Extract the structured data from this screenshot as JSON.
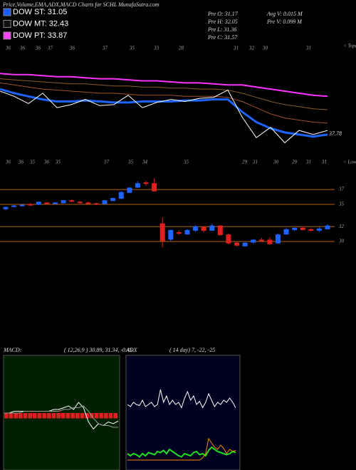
{
  "header": {
    "title": "Price,Volume,EMA,ADX,MACD Charts for SCHL MunafaSutra.com",
    "legend": [
      {
        "label": "DOW ST: 31.05",
        "color": "#1a5cff"
      },
      {
        "label": "DOW MT: 32.43",
        "color": "#111111"
      },
      {
        "label": "DOW PT: 33.87",
        "color": "#ff44ff"
      }
    ],
    "stats": [
      "Pre O: 31.17",
      "Pre H: 32.05",
      "Pre L: 31.36",
      "Pre C: 31.57",
      "Avg V: 0.015 M",
      "Pre V: 0.099 M"
    ]
  },
  "chart_data": [
    {
      "type": "line",
      "top_labels": [
        "36",
        "36",
        "36",
        "37",
        "36",
        "37",
        "35",
        "33",
        "28",
        "31",
        "32",
        "30",
        "31"
      ],
      "top_note": "< Topa",
      "bottom_labels": [
        "36",
        "36",
        "35",
        "36",
        "35",
        "37",
        "35",
        "34",
        "35",
        "29",
        "31",
        "30",
        "29",
        "31",
        "31"
      ],
      "bottom_note": "< Lowes",
      "annotation": "37.78",
      "ylim": [
        0,
        100
      ],
      "series": [
        {
          "color": "#ff33ff",
          "width": 2,
          "values": [
            77,
            76,
            76,
            75,
            74,
            74,
            73,
            72,
            72,
            71,
            70,
            70,
            69,
            68,
            68,
            67,
            66,
            66,
            64,
            62,
            60,
            58,
            56,
            55
          ]
        },
        {
          "color": "#8b5a2b",
          "width": 1,
          "values": [
            72,
            71,
            70,
            69,
            68,
            67,
            67,
            66,
            65,
            65,
            64,
            64,
            63,
            63,
            62,
            62,
            61,
            58,
            54,
            50,
            47,
            45,
            43,
            42
          ]
        },
        {
          "color": "#a0522d",
          "width": 1,
          "values": [
            68,
            66,
            64,
            62,
            61,
            60,
            59,
            58,
            58,
            57,
            56,
            56,
            56,
            55,
            55,
            55,
            54,
            50,
            44,
            38,
            34,
            32,
            30,
            29
          ]
        },
        {
          "color": "#1e63ff",
          "width": 3,
          "values": [
            62,
            58,
            55,
            52,
            50,
            50,
            51,
            50,
            49,
            49,
            50,
            50,
            50,
            51,
            51,
            52,
            52,
            40,
            30,
            24,
            20,
            18,
            16,
            18
          ]
        },
        {
          "color": "#ffffff",
          "width": 1,
          "values": [
            60,
            55,
            48,
            58,
            44,
            47,
            52,
            46,
            47,
            56,
            44,
            49,
            52,
            50,
            53,
            54,
            61,
            35,
            15,
            25,
            10,
            22,
            18,
            22
          ]
        }
      ]
    },
    {
      "type": "candlestick",
      "up_color": "#1e63ff",
      "down_color": "#e02020",
      "ylim": [
        28,
        39.5
      ],
      "yticks": [
        37,
        35,
        32,
        30
      ],
      "open": [
        34.4,
        34.7,
        34.8,
        35.0,
        35.0,
        35.2,
        35.1,
        35.2,
        35.5,
        35.3,
        35.2,
        35.1,
        35.1,
        35.5,
        35.8,
        36.6,
        37.3,
        37.9,
        37.8,
        32.4,
        30.3,
        31.2,
        31.0,
        31.5,
        31.9,
        31.5,
        32.1,
        30.9,
        29.8,
        29.4,
        29.9,
        30.2,
        30.2,
        29.8,
        31.0,
        31.6,
        31.8,
        31.6,
        31.5,
        31.7
      ],
      "high": [
        34.7,
        34.9,
        35.0,
        35.2,
        35.4,
        35.3,
        35.3,
        35.6,
        35.7,
        35.4,
        35.4,
        35.2,
        35.6,
        35.9,
        36.8,
        37.3,
        38.1,
        38.2,
        38.5,
        33.2,
        31.6,
        31.5,
        31.7,
        32.2,
        32.1,
        32.4,
        32.2,
        31.1,
        30.0,
        29.9,
        30.3,
        30.5,
        30.6,
        31.1,
        31.8,
        31.9,
        32.0,
        31.8,
        31.9,
        32.3
      ],
      "low": [
        34.2,
        34.6,
        34.7,
        34.8,
        34.9,
        35.0,
        35.0,
        35.1,
        35.3,
        35.1,
        35.0,
        34.9,
        35.0,
        35.4,
        35.7,
        36.5,
        37.2,
        37.5,
        36.7,
        29.2,
        30.0,
        30.9,
        30.9,
        31.3,
        31.2,
        31.4,
        30.8,
        29.6,
        29.3,
        29.3,
        29.7,
        30.0,
        29.5,
        29.7,
        30.9,
        31.4,
        31.5,
        31.3,
        31.3,
        31.6
      ],
      "close": [
        34.6,
        34.8,
        34.9,
        34.9,
        35.3,
        35.1,
        35.2,
        35.5,
        35.4,
        35.2,
        35.1,
        35.0,
        35.5,
        35.8,
        36.6,
        37.2,
        37.8,
        37.8,
        36.8,
        30.1,
        31.5,
        31.1,
        31.5,
        32.0,
        31.5,
        32.1,
        30.9,
        29.8,
        29.5,
        29.8,
        30.2,
        30.1,
        29.7,
        30.9,
        31.6,
        31.8,
        31.6,
        31.5,
        31.7,
        32.1
      ]
    },
    {
      "type": "macd",
      "title": "MACD:",
      "params": "( 12,26,9 ) 30.89, 31.34, -0.45",
      "ylim": [
        -3,
        3
      ],
      "histogram": {
        "color": "#e02020",
        "values": [
          -0.3,
          -0.3,
          -0.3,
          -0.3,
          -0.3,
          -0.3,
          -0.3,
          -0.3,
          -0.3,
          -0.3,
          -0.3,
          -0.3,
          -0.3,
          -0.3,
          -0.3,
          -0.3,
          -0.3,
          -0.3,
          -0.3,
          -0.3,
          -0.3,
          -0.3,
          -0.3,
          -0.3
        ]
      },
      "series": [
        {
          "color": "#ffffff",
          "values": [
            0,
            0,
            0.1,
            0.1,
            0.1,
            0.1,
            0.1,
            0.1,
            0.1,
            0.1,
            0.2,
            0.2,
            0.3,
            0.4,
            0.2,
            0.6,
            0.3,
            -0.5,
            -0.9,
            -0.6,
            -0.7,
            -0.5,
            -0.6,
            -0.45
          ]
        },
        {
          "color": "#999999",
          "values": [
            0,
            0,
            0,
            0,
            0.1,
            0.1,
            0.1,
            0.1,
            0.1,
            0.1,
            0.1,
            0.1,
            0.2,
            0.2,
            0.3,
            0.3,
            0.4,
            0.1,
            -0.3,
            -0.6,
            -0.7,
            -0.7,
            -0.8,
            -0.8
          ]
        }
      ]
    },
    {
      "type": "adx",
      "title": "ADX",
      "params": "( 14 day) 7, -22, -25",
      "ylim": [
        0,
        100
      ],
      "series": [
        {
          "color": "#ffffff",
          "values": [
            58,
            56,
            60,
            58,
            57,
            62,
            56,
            58,
            60,
            56,
            58,
            72,
            60,
            66,
            58,
            62,
            58,
            60,
            55,
            64,
            70,
            62,
            66,
            58,
            61,
            55,
            60,
            68,
            62,
            56,
            60,
            58,
            62,
            60,
            64,
            60,
            55
          ]
        },
        {
          "color": "#22dd22",
          "values": [
            12,
            10,
            12,
            11,
            9,
            12,
            10,
            13,
            12,
            11,
            14,
            13,
            15,
            12,
            16,
            14,
            12,
            10,
            9,
            12,
            11,
            10,
            13,
            14,
            11,
            12,
            10,
            15,
            18,
            16,
            14,
            13,
            12,
            11,
            12,
            14,
            13
          ]
        },
        {
          "color": "#ff8800",
          "values": [
            6,
            6,
            6,
            6,
            6,
            6,
            6,
            6,
            6,
            6,
            6,
            6,
            6,
            6,
            6,
            6,
            6,
            6,
            6,
            6,
            6,
            6,
            6,
            6,
            6,
            8,
            12,
            26,
            22,
            18,
            16,
            20,
            17,
            12,
            16,
            14,
            15
          ]
        }
      ]
    }
  ]
}
